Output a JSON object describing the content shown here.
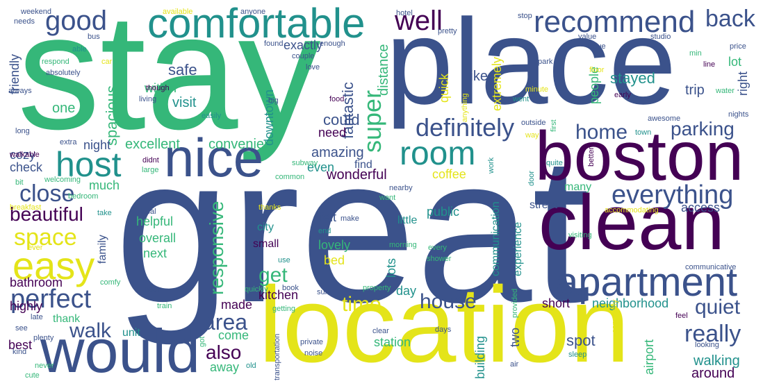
{
  "palette": {
    "dark-purple": "#440154",
    "indigo": "#3b528b",
    "teal": "#21918c",
    "green": "#35b779",
    "yellow": "#e4e419"
  },
  "words": [
    {
      "text": "stay",
      "color": "green"
    },
    {
      "text": "great",
      "color": "indigo"
    },
    {
      "text": "place",
      "color": "indigo"
    },
    {
      "text": "location",
      "color": "yellow"
    },
    {
      "text": "clean",
      "color": "dark-purple"
    },
    {
      "text": "boston",
      "color": "dark-purple"
    },
    {
      "text": "nice",
      "color": "indigo"
    },
    {
      "text": "would",
      "color": "indigo"
    },
    {
      "text": "comfortable",
      "color": "teal"
    },
    {
      "text": "apartment",
      "color": "indigo"
    },
    {
      "text": "easy",
      "color": "yellow"
    },
    {
      "text": "host",
      "color": "teal"
    },
    {
      "text": "recommend",
      "color": "indigo"
    },
    {
      "text": "room",
      "color": "teal"
    },
    {
      "text": "everything",
      "color": "indigo"
    },
    {
      "text": "definitely",
      "color": "indigo"
    },
    {
      "text": "good",
      "color": "indigo"
    },
    {
      "text": "perfect",
      "color": "indigo"
    },
    {
      "text": "space",
      "color": "yellow"
    },
    {
      "text": "well",
      "color": "dark-purple"
    },
    {
      "text": "close",
      "color": "indigo"
    },
    {
      "text": "beautiful",
      "color": "dark-purple"
    },
    {
      "text": "walk",
      "color": "indigo"
    },
    {
      "text": "home",
      "color": "indigo"
    },
    {
      "text": "parking",
      "color": "indigo"
    },
    {
      "text": "back",
      "color": "indigo"
    },
    {
      "text": "super",
      "color": "green"
    },
    {
      "text": "really",
      "color": "indigo"
    },
    {
      "text": "area",
      "color": "indigo"
    },
    {
      "text": "house",
      "color": "indigo"
    },
    {
      "text": "time",
      "color": "yellow"
    },
    {
      "text": "quiet",
      "color": "indigo"
    },
    {
      "text": "get",
      "color": "green"
    },
    {
      "text": "also",
      "color": "dark-purple"
    },
    {
      "text": "responsive",
      "color": "green"
    },
    {
      "text": "spot",
      "color": "indigo"
    },
    {
      "text": "walking",
      "color": "teal"
    },
    {
      "text": "around",
      "color": "dark-purple"
    },
    {
      "text": "stayed",
      "color": "teal"
    },
    {
      "text": "safe",
      "color": "indigo"
    },
    {
      "text": "visit",
      "color": "teal"
    },
    {
      "text": "one",
      "color": "green"
    },
    {
      "text": "within",
      "color": "green"
    },
    {
      "text": "spacious",
      "color": "green"
    },
    {
      "text": "fantastic",
      "color": "indigo"
    },
    {
      "text": "could",
      "color": "indigo"
    },
    {
      "text": "need",
      "color": "dark-purple"
    },
    {
      "text": "amazing",
      "color": "indigo"
    },
    {
      "text": "even",
      "color": "teal"
    },
    {
      "text": "find",
      "color": "indigo"
    },
    {
      "text": "wonderful",
      "color": "dark-purple"
    },
    {
      "text": "excellent",
      "color": "green"
    },
    {
      "text": "convenient",
      "color": "green"
    },
    {
      "text": "downtown",
      "color": "teal"
    },
    {
      "text": "exactly",
      "color": "indigo"
    },
    {
      "text": "distance",
      "color": "green"
    },
    {
      "text": "quick",
      "color": "yellow"
    },
    {
      "text": "like",
      "color": "indigo"
    },
    {
      "text": "extremely",
      "color": "yellow"
    },
    {
      "text": "trip",
      "color": "indigo"
    },
    {
      "text": "people",
      "color": "green"
    },
    {
      "text": "lot",
      "color": "green"
    },
    {
      "text": "right",
      "color": "indigo"
    },
    {
      "text": "friendly",
      "color": "indigo"
    },
    {
      "text": "night",
      "color": "indigo"
    },
    {
      "text": "cozy",
      "color": "indigo"
    },
    {
      "text": "check",
      "color": "indigo"
    },
    {
      "text": "much",
      "color": "green"
    },
    {
      "text": "helpful",
      "color": "green"
    },
    {
      "text": "overall",
      "color": "green"
    },
    {
      "text": "next",
      "color": "green"
    },
    {
      "text": "family",
      "color": "indigo"
    },
    {
      "text": "bathroom",
      "color": "dark-purple"
    },
    {
      "text": "highly",
      "color": "dark-purple"
    },
    {
      "text": "thank",
      "color": "green"
    },
    {
      "text": "unit",
      "color": "teal"
    },
    {
      "text": "best",
      "color": "dark-purple"
    },
    {
      "text": "city",
      "color": "teal"
    },
    {
      "text": "small",
      "color": "dark-purple"
    },
    {
      "text": "lovely",
      "color": "green"
    },
    {
      "text": "bed",
      "color": "yellow"
    },
    {
      "text": "felt",
      "color": "indigo"
    },
    {
      "text": "little",
      "color": "teal"
    },
    {
      "text": "public",
      "color": "teal"
    },
    {
      "text": "lots",
      "color": "teal"
    },
    {
      "text": "coffee",
      "color": "yellow"
    },
    {
      "text": "kitchen",
      "color": "dark-purple"
    },
    {
      "text": "made",
      "color": "dark-purple"
    },
    {
      "text": "come",
      "color": "green"
    },
    {
      "text": "away",
      "color": "green"
    },
    {
      "text": "station",
      "color": "green"
    },
    {
      "text": "day",
      "color": "teal"
    },
    {
      "text": "building",
      "color": "teal"
    },
    {
      "text": "two",
      "color": "indigo"
    },
    {
      "text": "communication",
      "color": "teal"
    },
    {
      "text": "experience",
      "color": "teal"
    },
    {
      "text": "many",
      "color": "green"
    },
    {
      "text": "street",
      "color": "indigo"
    },
    {
      "text": "access",
      "color": "indigo"
    },
    {
      "text": "short",
      "color": "dark-purple"
    },
    {
      "text": "neighborhood",
      "color": "teal"
    },
    {
      "text": "airport",
      "color": "green"
    },
    {
      "text": "weekend",
      "color": "indigo"
    },
    {
      "text": "needs",
      "color": "indigo"
    },
    {
      "text": "available",
      "color": "yellow"
    },
    {
      "text": "anyone",
      "color": "indigo"
    },
    {
      "text": "hotel",
      "color": "indigo"
    },
    {
      "text": "stop",
      "color": "indigo"
    },
    {
      "text": "bus",
      "color": "indigo"
    },
    {
      "text": "able",
      "color": "teal"
    },
    {
      "text": "respond",
      "color": "green"
    },
    {
      "text": "car",
      "color": "yellow"
    },
    {
      "text": "absolutely",
      "color": "indigo"
    },
    {
      "text": "always",
      "color": "indigo"
    },
    {
      "text": "found",
      "color": "indigo"
    },
    {
      "text": "enough",
      "color": "indigo"
    },
    {
      "text": "pretty",
      "color": "indigo"
    },
    {
      "text": "couple",
      "color": "indigo"
    },
    {
      "text": "love",
      "color": "indigo"
    },
    {
      "text": "though",
      "color": "dark-purple"
    },
    {
      "text": "living",
      "color": "indigo"
    },
    {
      "text": "easily",
      "color": "teal"
    },
    {
      "text": "big",
      "color": "indigo"
    },
    {
      "text": "food",
      "color": "dark-purple"
    },
    {
      "text": "anything",
      "color": "yellow"
    },
    {
      "text": "studio",
      "color": "indigo"
    },
    {
      "text": "value",
      "color": "indigo"
    },
    {
      "text": "issue",
      "color": "indigo"
    },
    {
      "text": "price",
      "color": "indigo"
    },
    {
      "text": "min",
      "color": "green"
    },
    {
      "text": "park",
      "color": "indigo"
    },
    {
      "text": "line",
      "color": "dark-purple"
    },
    {
      "text": "floor",
      "color": "yellow"
    },
    {
      "text": "minute",
      "color": "yellow"
    },
    {
      "text": "went",
      "color": "teal"
    },
    {
      "text": "early",
      "color": "dark-purple"
    },
    {
      "text": "water",
      "color": "green"
    },
    {
      "text": "nights",
      "color": "indigo"
    },
    {
      "text": "awesome",
      "color": "indigo"
    },
    {
      "text": "outside",
      "color": "indigo"
    },
    {
      "text": "first",
      "color": "green"
    },
    {
      "text": "way",
      "color": "yellow"
    },
    {
      "text": "town",
      "color": "teal"
    },
    {
      "text": "long",
      "color": "indigo"
    },
    {
      "text": "extra",
      "color": "indigo"
    },
    {
      "text": "walkable",
      "color": "dark-purple"
    },
    {
      "text": "didnt",
      "color": "dark-purple"
    },
    {
      "text": "large",
      "color": "green"
    },
    {
      "text": "subway",
      "color": "green"
    },
    {
      "text": "work",
      "color": "teal"
    },
    {
      "text": "quite",
      "color": "teal"
    },
    {
      "text": "door",
      "color": "teal"
    },
    {
      "text": "better",
      "color": "dark-purple"
    },
    {
      "text": "bit",
      "color": "green"
    },
    {
      "text": "welcoming",
      "color": "green"
    },
    {
      "text": "common",
      "color": "green"
    },
    {
      "text": "nearby",
      "color": "indigo"
    },
    {
      "text": "bedroom",
      "color": "green"
    },
    {
      "text": "breakfast",
      "color": "yellow"
    },
    {
      "text": "take",
      "color": "teal"
    },
    {
      "text": "local",
      "color": "indigo"
    },
    {
      "text": "thanks",
      "color": "yellow"
    },
    {
      "text": "want",
      "color": "green"
    },
    {
      "text": "make",
      "color": "indigo"
    },
    {
      "text": "end",
      "color": "teal"
    },
    {
      "text": "accommodating",
      "color": "yellow"
    },
    {
      "text": "visiting",
      "color": "green"
    },
    {
      "text": "ever",
      "color": "yellow"
    },
    {
      "text": "morning",
      "color": "green"
    },
    {
      "text": "use",
      "color": "teal"
    },
    {
      "text": "every",
      "color": "green"
    },
    {
      "text": "shower",
      "color": "green"
    },
    {
      "text": "communicative",
      "color": "indigo"
    },
    {
      "text": "comfy",
      "color": "green"
    },
    {
      "text": "near",
      "color": "indigo"
    },
    {
      "text": "quickly",
      "color": "green"
    },
    {
      "text": "book",
      "color": "indigo"
    },
    {
      "text": "sure",
      "color": "indigo"
    },
    {
      "text": "property",
      "color": "green"
    },
    {
      "text": "provided",
      "color": "green"
    },
    {
      "text": "especially",
      "color": "yellow"
    },
    {
      "text": "train",
      "color": "green"
    },
    {
      "text": "getting",
      "color": "green"
    },
    {
      "text": "late",
      "color": "indigo"
    },
    {
      "text": "see",
      "color": "indigo"
    },
    {
      "text": "plenty",
      "color": "indigo"
    },
    {
      "text": "kind",
      "color": "indigo"
    },
    {
      "text": "never",
      "color": "green"
    },
    {
      "text": "cute",
      "color": "green"
    },
    {
      "text": "old",
      "color": "teal"
    },
    {
      "text": "transportation",
      "color": "indigo"
    },
    {
      "text": "clear",
      "color": "indigo"
    },
    {
      "text": "private",
      "color": "indigo"
    },
    {
      "text": "noise",
      "color": "indigo"
    },
    {
      "text": "days",
      "color": "indigo"
    },
    {
      "text": "air",
      "color": "indigo"
    },
    {
      "text": "sleep",
      "color": "teal"
    },
    {
      "text": "got",
      "color": "green"
    },
    {
      "text": "feel",
      "color": "dark-purple"
    },
    {
      "text": "looking",
      "color": "indigo"
    }
  ]
}
